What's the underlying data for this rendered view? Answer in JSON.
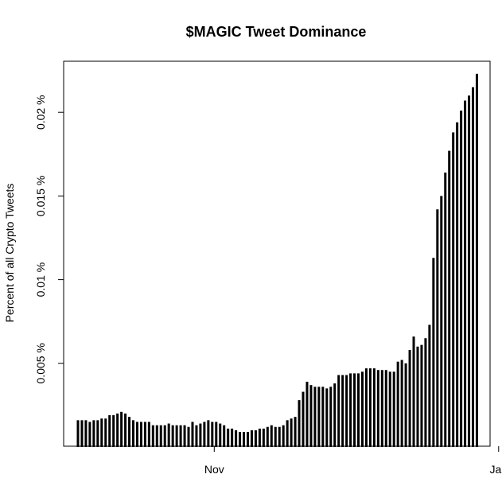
{
  "chart_data": {
    "type": "bar",
    "title": "$MAGIC Tweet Dominance",
    "xlabel": "",
    "ylabel": "Percent of all Crypto Tweets",
    "ylim": [
      0,
      0.023
    ],
    "y_ticks": [
      {
        "value": 0.005,
        "label": "0.005 %"
      },
      {
        "value": 0.01,
        "label": "0.01 %"
      },
      {
        "value": 0.015,
        "label": "0.015 %"
      },
      {
        "value": 0.02,
        "label": "0.02 %"
      }
    ],
    "x_ticks": [
      {
        "index": 34.5,
        "label": "Nov"
      },
      {
        "index": 106.5,
        "label": "Jan"
      }
    ],
    "bar_color": "#000000",
    "values": [
      0.0016,
      0.0016,
      0.0016,
      0.0015,
      0.0016,
      0.0016,
      0.0017,
      0.0017,
      0.0019,
      0.0019,
      0.002,
      0.0021,
      0.002,
      0.0018,
      0.0016,
      0.0015,
      0.0015,
      0.0015,
      0.0015,
      0.0013,
      0.0013,
      0.0013,
      0.0013,
      0.0014,
      0.0013,
      0.0013,
      0.0013,
      0.0013,
      0.0012,
      0.0015,
      0.0013,
      0.0014,
      0.0015,
      0.0016,
      0.0015,
      0.0015,
      0.0014,
      0.0013,
      0.0011,
      0.0011,
      0.001,
      0.0009,
      0.0009,
      0.0009,
      0.001,
      0.001,
      0.0011,
      0.0011,
      0.0012,
      0.0013,
      0.0012,
      0.0012,
      0.0013,
      0.0016,
      0.0017,
      0.0018,
      0.0028,
      0.0033,
      0.0039,
      0.0037,
      0.0036,
      0.0036,
      0.0036,
      0.0035,
      0.0036,
      0.0038,
      0.0043,
      0.0043,
      0.0043,
      0.0044,
      0.0044,
      0.0044,
      0.0045,
      0.0047,
      0.0047,
      0.0047,
      0.0046,
      0.0046,
      0.0046,
      0.0045,
      0.0045,
      0.0051,
      0.0052,
      0.005,
      0.0058,
      0.0066,
      0.006,
      0.0061,
      0.0065,
      0.0073,
      0.0113,
      0.0142,
      0.015,
      0.0164,
      0.0177,
      0.0188,
      0.0194,
      0.0201,
      0.0207,
      0.021,
      0.0215,
      0.0223
    ]
  }
}
